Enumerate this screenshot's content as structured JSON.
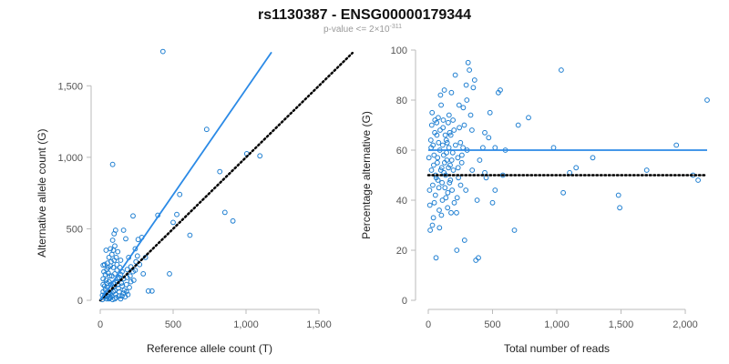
{
  "figure": {
    "title": "rs1130387 - ENSG00000179344",
    "subtitle_prefix": "p-value <= 2",
    "subtitle_times": "×",
    "subtitle_base": "10",
    "subtitle_exponent": "-311"
  },
  "colors": {
    "points": "#1f7fd1",
    "fit_line": "#2b8ae6",
    "reference_line": "#000000"
  },
  "chart_data": [
    {
      "type": "scatter",
      "xlabel": "Reference allele count (T)",
      "ylabel": "Alternative allele count (G)",
      "xlim": [
        0,
        1500
      ],
      "ylim": [
        0,
        1750
      ],
      "xticks": [
        0,
        500,
        1000,
        1500
      ],
      "xtick_labels": [
        "0",
        "500",
        "1,000",
        "1,500"
      ],
      "yticks": [
        0,
        500,
        1000,
        1500
      ],
      "ytick_labels": [
        "0",
        "500",
        "1,000",
        "1,500"
      ],
      "grid": false,
      "reference_line": {
        "style": "dotted",
        "from": [
          0,
          0
        ],
        "to": [
          1730,
          1730
        ]
      },
      "fit_line": {
        "style": "solid",
        "from": [
          0,
          0
        ],
        "to": [
          1175,
          1735
        ]
      },
      "points": [
        [
          430,
          1740
        ],
        [
          85,
          950
        ],
        [
          730,
          1195
        ],
        [
          820,
          900
        ],
        [
          1005,
          1025
        ],
        [
          1095,
          1010
        ],
        [
          910,
          555
        ],
        [
          855,
          615
        ],
        [
          525,
          600
        ],
        [
          545,
          740
        ],
        [
          500,
          545
        ],
        [
          615,
          455
        ],
        [
          395,
          595
        ],
        [
          475,
          185
        ],
        [
          225,
          590
        ],
        [
          260,
          425
        ],
        [
          285,
          440
        ],
        [
          295,
          185
        ],
        [
          160,
          490
        ],
        [
          175,
          430
        ],
        [
          330,
          65
        ],
        [
          355,
          65
        ],
        [
          230,
          140
        ],
        [
          210,
          235
        ],
        [
          255,
          310
        ],
        [
          240,
          360
        ],
        [
          245,
          270
        ],
        [
          195,
          300
        ],
        [
          185,
          215
        ],
        [
          105,
          490
        ],
        [
          95,
          465
        ],
        [
          85,
          420
        ],
        [
          100,
          380
        ],
        [
          90,
          350
        ],
        [
          70,
          360
        ],
        [
          40,
          350
        ],
        [
          60,
          300
        ],
        [
          80,
          320
        ],
        [
          110,
          300
        ],
        [
          50,
          260
        ],
        [
          30,
          250
        ],
        [
          20,
          245
        ],
        [
          45,
          215
        ],
        [
          70,
          240
        ],
        [
          90,
          230
        ],
        [
          115,
          250
        ],
        [
          150,
          200
        ],
        [
          135,
          230
        ],
        [
          25,
          200
        ],
        [
          55,
          190
        ],
        [
          80,
          170
        ],
        [
          100,
          185
        ],
        [
          130,
          160
        ],
        [
          160,
          150
        ],
        [
          20,
          150
        ],
        [
          40,
          140
        ],
        [
          60,
          130
        ],
        [
          90,
          120
        ],
        [
          120,
          110
        ],
        [
          150,
          100
        ],
        [
          180,
          110
        ],
        [
          200,
          90
        ],
        [
          30,
          100
        ],
        [
          50,
          90
        ],
        [
          70,
          80
        ],
        [
          100,
          70
        ],
        [
          130,
          60
        ],
        [
          160,
          50
        ],
        [
          190,
          40
        ],
        [
          20,
          60
        ],
        [
          40,
          50
        ],
        [
          60,
          40
        ],
        [
          80,
          30
        ],
        [
          110,
          20
        ],
        [
          140,
          10
        ],
        [
          170,
          25
        ],
        [
          25,
          20
        ],
        [
          45,
          10
        ],
        [
          65,
          15
        ],
        [
          85,
          5
        ],
        [
          15,
          35
        ],
        [
          35,
          75
        ],
        [
          55,
          55
        ],
        [
          75,
          110
        ],
        [
          95,
          95
        ],
        [
          115,
          130
        ],
        [
          125,
          85
        ],
        [
          145,
          120
        ],
        [
          165,
          70
        ],
        [
          185,
          160
        ],
        [
          205,
          170
        ],
        [
          225,
          200
        ],
        [
          15,
          5
        ],
        [
          30,
          30
        ],
        [
          50,
          25
        ],
        [
          70,
          45
        ],
        [
          90,
          60
        ],
        [
          105,
          40
        ],
        [
          120,
          150
        ],
        [
          140,
          180
        ],
        [
          65,
          170
        ],
        [
          35,
          180
        ],
        [
          55,
          230
        ],
        [
          75,
          270
        ],
        [
          95,
          280
        ],
        [
          115,
          210
        ],
        [
          60,
          10
        ],
        [
          100,
          10
        ],
        [
          130,
          30
        ],
        [
          20,
          110
        ],
        [
          45,
          120
        ],
        [
          70,
          20
        ],
        [
          150,
          30
        ],
        [
          180,
          60
        ],
        [
          210,
          130
        ],
        [
          240,
          210
        ],
        [
          270,
          250
        ],
        [
          310,
          300
        ],
        [
          120,
          340
        ],
        [
          140,
          280
        ]
      ]
    },
    {
      "type": "scatter",
      "xlabel": "Total number of reads",
      "ylabel": "Percentage alternative (G)",
      "xlim": [
        0,
        2170
      ],
      "ylim": [
        0,
        100
      ],
      "xticks": [
        0,
        500,
        1000,
        1500,
        2000
      ],
      "xtick_labels": [
        "0",
        "500",
        "1,000",
        "1,500",
        "2,000"
      ],
      "yticks": [
        0,
        20,
        40,
        60,
        80,
        100
      ],
      "ytick_labels": [
        "0",
        "20",
        "40",
        "60",
        "80",
        "100"
      ],
      "grid": false,
      "reference_line": {
        "style": "dotted",
        "y": 50
      },
      "fit_line": {
        "style": "solid",
        "y": 60
      },
      "points": [
        [
          2170,
          80
        ],
        [
          1035,
          92
        ],
        [
          1930,
          62
        ],
        [
          2060,
          50
        ],
        [
          2100,
          48
        ],
        [
          1700,
          52
        ],
        [
          1480,
          42
        ],
        [
          1490,
          37
        ],
        [
          1280,
          57
        ],
        [
          1150,
          53
        ],
        [
          1100,
          51
        ],
        [
          1050,
          43
        ],
        [
          975,
          61
        ],
        [
          780,
          73
        ],
        [
          700,
          70
        ],
        [
          670,
          28
        ],
        [
          600,
          60
        ],
        [
          580,
          50
        ],
        [
          560,
          84
        ],
        [
          545,
          83
        ],
        [
          520,
          61
        ],
        [
          500,
          39
        ],
        [
          480,
          75
        ],
        [
          470,
          65
        ],
        [
          450,
          49
        ],
        [
          440,
          67
        ],
        [
          400,
          56
        ],
        [
          390,
          17
        ],
        [
          370,
          16
        ],
        [
          360,
          88
        ],
        [
          350,
          85
        ],
        [
          340,
          68
        ],
        [
          330,
          74
        ],
        [
          320,
          92
        ],
        [
          310,
          95
        ],
        [
          300,
          80
        ],
        [
          295,
          86
        ],
        [
          280,
          70
        ],
        [
          270,
          61
        ],
        [
          260,
          55
        ],
        [
          250,
          63
        ],
        [
          240,
          78
        ],
        [
          235,
          49
        ],
        [
          230,
          57
        ],
        [
          225,
          41
        ],
        [
          220,
          35
        ],
        [
          210,
          90
        ],
        [
          200,
          68
        ],
        [
          195,
          52
        ],
        [
          190,
          59
        ],
        [
          185,
          44
        ],
        [
          180,
          83
        ],
        [
          175,
          66
        ],
        [
          170,
          54
        ],
        [
          165,
          47
        ],
        [
          160,
          61
        ],
        [
          155,
          71
        ],
        [
          150,
          37
        ],
        [
          145,
          56
        ],
        [
          140,
          64
        ],
        [
          135,
          50
        ],
        [
          130,
          45
        ],
        [
          125,
          84
        ],
        [
          120,
          58
        ],
        [
          115,
          69
        ],
        [
          110,
          40
        ],
        [
          105,
          53
        ],
        [
          100,
          78
        ],
        [
          95,
          82
        ],
        [
          90,
          60
        ],
        [
          85,
          36
        ],
        [
          80,
          63
        ],
        [
          75,
          48
        ],
        [
          70,
          55
        ],
        [
          65,
          71
        ],
        [
          60,
          17
        ],
        [
          55,
          42
        ],
        [
          50,
          67
        ],
        [
          45,
          58
        ],
        [
          40,
          33
        ],
        [
          35,
          46
        ],
        [
          30,
          75
        ],
        [
          25,
          52
        ],
        [
          20,
          64
        ],
        [
          15,
          28
        ],
        [
          10,
          44
        ],
        [
          5,
          57
        ],
        [
          12,
          38
        ],
        [
          22,
          61
        ],
        [
          32,
          30
        ],
        [
          42,
          54
        ],
        [
          52,
          72
        ],
        [
          62,
          49
        ],
        [
          72,
          57
        ],
        [
          82,
          45
        ],
        [
          92,
          68
        ],
        [
          102,
          34
        ],
        [
          112,
          62
        ],
        [
          122,
          51
        ],
        [
          132,
          66
        ],
        [
          142,
          59
        ],
        [
          152,
          43
        ],
        [
          162,
          74
        ],
        [
          172,
          48
        ],
        [
          182,
          56
        ],
        [
          192,
          72
        ],
        [
          202,
          39
        ],
        [
          212,
          62
        ],
        [
          222,
          20
        ],
        [
          232,
          53
        ],
        [
          242,
          69
        ],
        [
          252,
          46
        ],
        [
          262,
          58
        ],
        [
          272,
          77
        ],
        [
          282,
          24
        ],
        [
          292,
          44
        ],
        [
          302,
          60
        ],
        [
          342,
          52
        ],
        [
          380,
          40
        ],
        [
          425,
          61
        ],
        [
          520,
          44
        ],
        [
          440,
          51
        ],
        [
          27,
          70
        ],
        [
          37,
          62
        ],
        [
          47,
          39
        ],
        [
          57,
          50
        ],
        [
          67,
          66
        ],
        [
          77,
          73
        ],
        [
          87,
          29
        ],
        [
          97,
          52
        ],
        [
          107,
          47
        ],
        [
          117,
          72
        ],
        [
          127,
          55
        ],
        [
          137,
          41
        ],
        [
          147,
          63
        ],
        [
          157,
          53
        ],
        [
          167,
          67
        ],
        [
          177,
          35
        ]
      ]
    }
  ]
}
